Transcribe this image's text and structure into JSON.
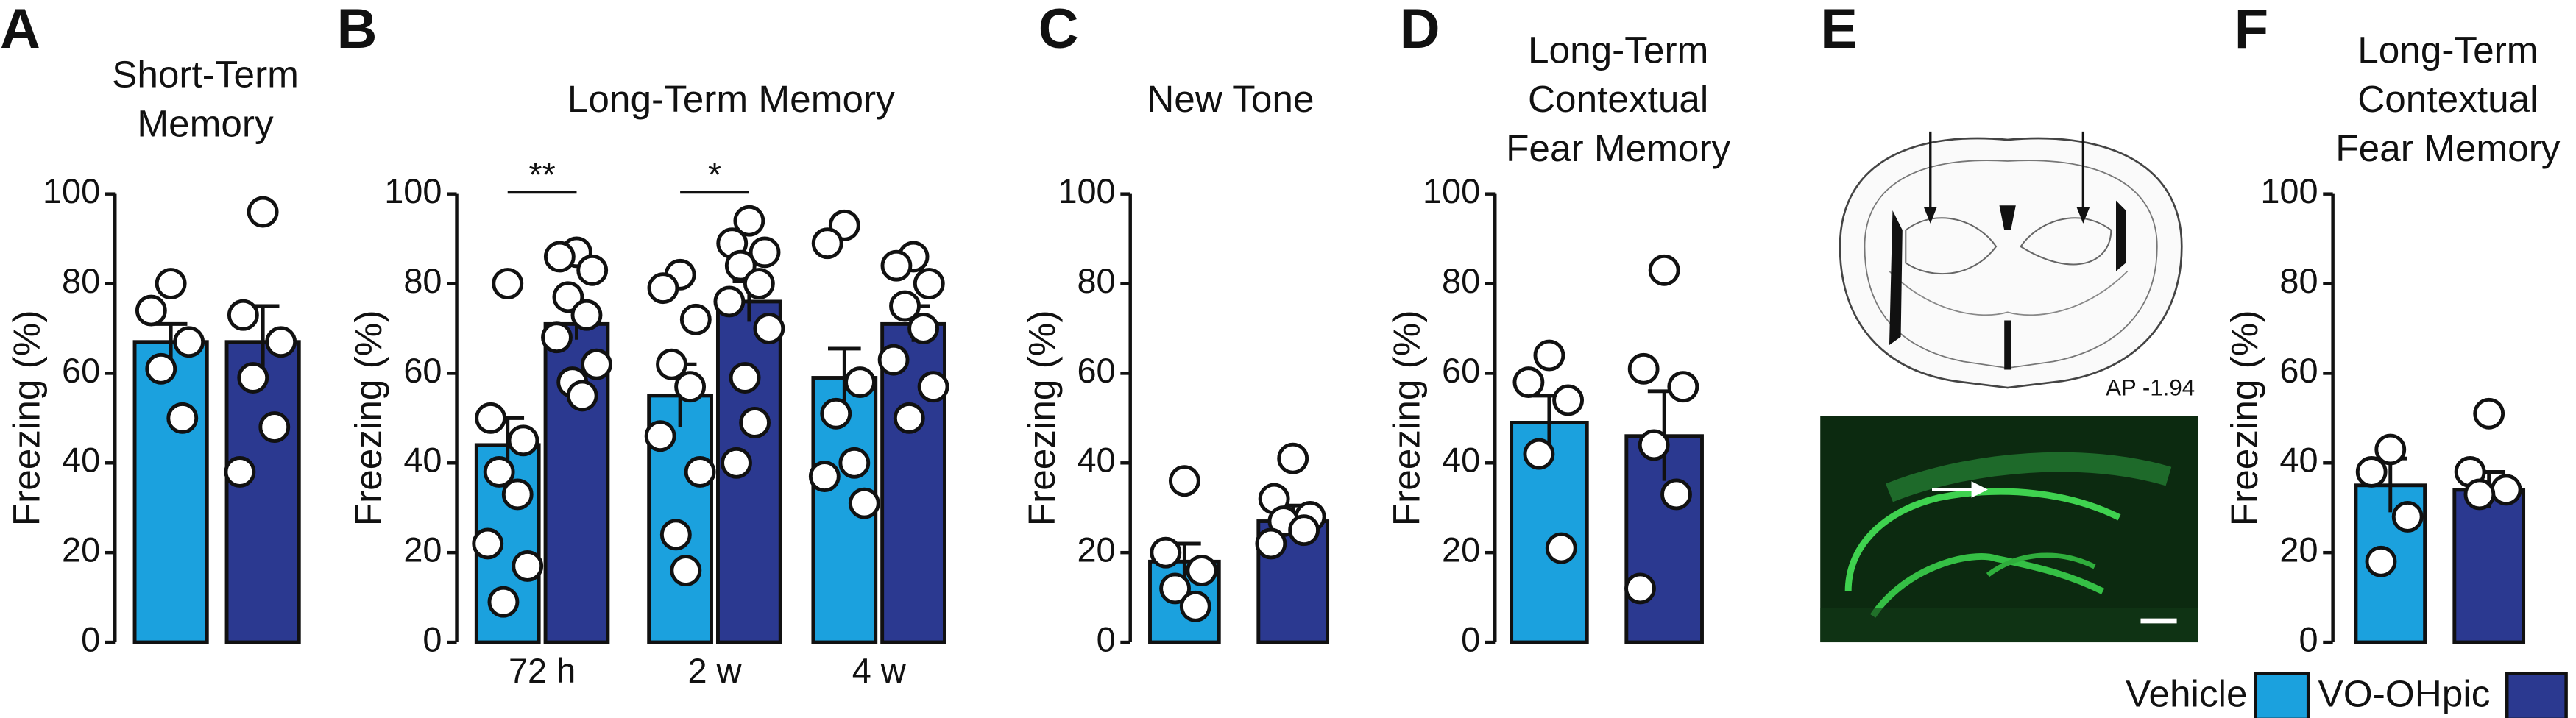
{
  "chart_data": [
    {
      "type": "bar",
      "panel": "A",
      "title": [
        "Short-Term",
        "Memory"
      ],
      "y_label": "Freezing (%)",
      "ylim": [
        0,
        100
      ],
      "yticks": [
        0,
        20,
        40,
        60,
        80,
        100
      ],
      "series": [
        {
          "color": "#1ba1de",
          "values": [
            67
          ],
          "errors": [
            4
          ],
          "points": [
            [
              80,
              74,
              67,
              61,
              50
            ]
          ]
        },
        {
          "color": "#2b3990",
          "values": [
            67
          ],
          "errors": [
            8
          ],
          "points": [
            [
              96,
              73,
              67,
              59,
              48,
              38
            ]
          ]
        }
      ]
    },
    {
      "type": "bar",
      "panel": "B",
      "title": [
        "Long-Term Memory"
      ],
      "y_label": "Freezing (%)",
      "ylim": [
        0,
        100
      ],
      "yticks": [
        0,
        20,
        40,
        60,
        80,
        100
      ],
      "categories": [
        "72 h",
        "2 w",
        "4 w"
      ],
      "annotations": [
        "**",
        "*",
        null
      ],
      "series": [
        {
          "color": "#1ba1de",
          "values": [
            44,
            55,
            59
          ],
          "errors": [
            6,
            7,
            6.5
          ],
          "points": [
            [
              80,
              50,
              45,
              38,
              33,
              22,
              17,
              9
            ],
            [
              82,
              79,
              72,
              62,
              57,
              46,
              38,
              24,
              16
            ],
            [
              93,
              89,
              58,
              51,
              40,
              37,
              31
            ]
          ]
        },
        {
          "color": "#2b3990",
          "values": [
            71,
            76,
            71
          ],
          "errors": [
            3.5,
            4.5,
            4
          ],
          "points": [
            [
              87,
              86,
              83,
              77,
              73,
              68,
              62,
              58,
              55
            ],
            [
              94,
              89,
              87,
              84,
              80,
              76,
              70,
              59,
              49,
              40
            ],
            [
              86,
              84,
              80,
              75,
              70,
              63,
              57,
              50
            ]
          ]
        }
      ]
    },
    {
      "type": "bar",
      "panel": "C",
      "title": [
        "New Tone"
      ],
      "y_label": "Freezing (%)",
      "ylim": [
        0,
        100
      ],
      "yticks": [
        0,
        20,
        40,
        60,
        80,
        100
      ],
      "series": [
        {
          "color": "#1ba1de",
          "values": [
            18
          ],
          "errors": [
            4
          ],
          "points": [
            [
              36,
              20,
              16,
              12,
              8
            ]
          ]
        },
        {
          "color": "#2b3990",
          "values": [
            27
          ],
          "errors": [
            3.5
          ],
          "points": [
            [
              41,
              32,
              28,
              27,
              25,
              22
            ]
          ]
        }
      ]
    },
    {
      "type": "bar",
      "panel": "D",
      "title": [
        "Long-Term",
        "Contextual",
        "Fear Memory"
      ],
      "y_label": "Freezing (%)",
      "ylim": [
        0,
        100
      ],
      "yticks": [
        0,
        20,
        40,
        60,
        80,
        100
      ],
      "series": [
        {
          "color": "#1ba1de",
          "values": [
            49
          ],
          "errors": [
            6
          ],
          "points": [
            [
              64,
              58,
              54,
              42,
              21
            ]
          ]
        },
        {
          "color": "#2b3990",
          "values": [
            46
          ],
          "errors": [
            10
          ],
          "points": [
            [
              83,
              61,
              57,
              44,
              33,
              12
            ]
          ]
        }
      ]
    },
    {
      "type": "bar",
      "panel": "F",
      "title": [
        "Long-Term",
        "Contextual",
        "Fear Memory"
      ],
      "y_label": "Freezing (%)",
      "ylim": [
        0,
        100
      ],
      "yticks": [
        0,
        20,
        40,
        60,
        80,
        100
      ],
      "series": [
        {
          "color": "#1ba1de",
          "values": [
            35
          ],
          "errors": [
            6
          ],
          "points": [
            [
              43,
              38,
              28,
              18
            ]
          ]
        },
        {
          "color": "#2b3990",
          "values": [
            34
          ],
          "errors": [
            4
          ],
          "points": [
            [
              51,
              38,
              34,
              33
            ]
          ]
        }
      ]
    }
  ],
  "image_panel": {
    "panel": "E",
    "label": "AP -1.94"
  },
  "legend": [
    {
      "name": "Vehicle",
      "color": "#1ba1de"
    },
    {
      "name": "VO-OHpic",
      "color": "#2b3990"
    }
  ]
}
